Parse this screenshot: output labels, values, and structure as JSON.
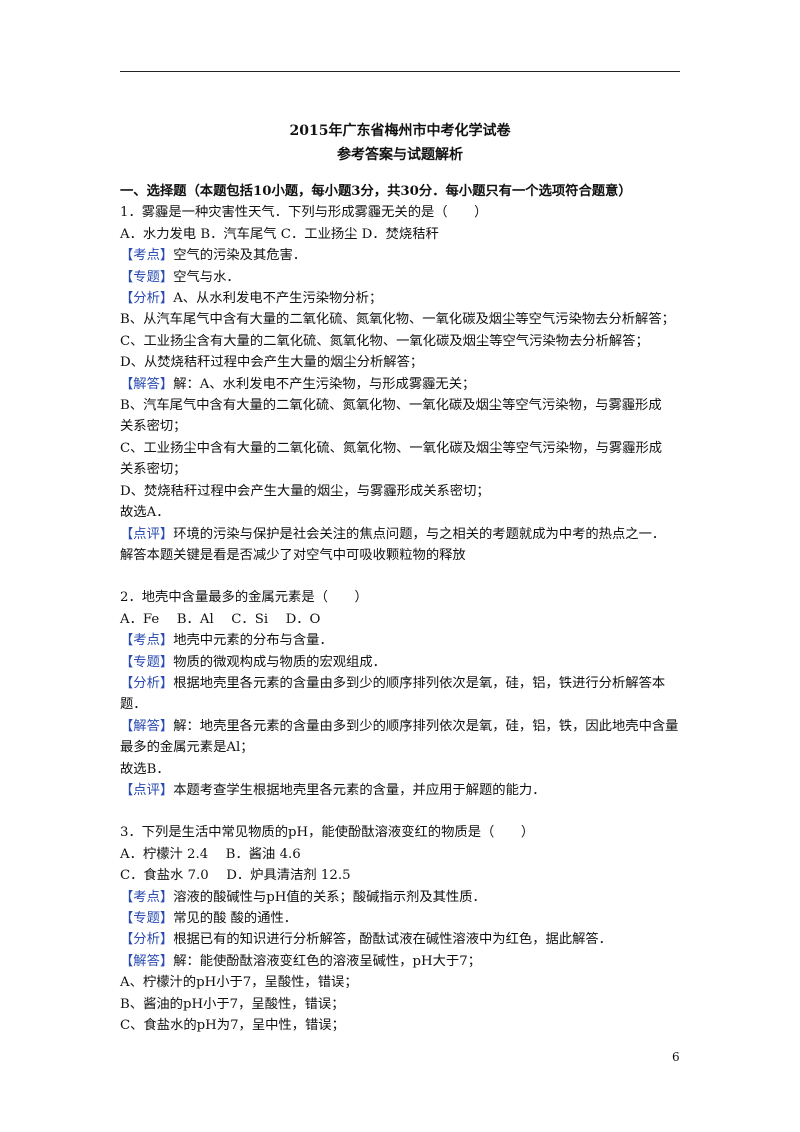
{
  "header": {
    "title": "2015年广东省梅州市中考化学试卷",
    "subtitle": "参考答案与试题解析"
  },
  "section": "一、选择题（本题包括10小题，每小题3分，共30分．每小题只有一个选项符合题意）",
  "questions": [
    {
      "lines": [
        "1．雾霾是一种灾害性天气．下列与形成雾霾无关的是（　　）",
        "A．水力发电 B．汽车尾气 C．工业扬尘 D．焚烧秸秆",
        {
          "tag": "【考点】",
          "text": "空气的污染及其危害．"
        },
        {
          "tag": "【专题】",
          "text": "空气与水．"
        },
        {
          "tag": "【分析】",
          "text": "A、从水利发电不产生污染物分析；"
        },
        "B、从汽车尾气中含有大量的二氧化硫、氮氧化物、一氧化碳及烟尘等空气污染物去分析解答；",
        "C、工业扬尘含有大量的二氧化硫、氮氧化物、一氧化碳及烟尘等空气污染物去分析解答；",
        "D、从焚烧秸秆过程中会产生大量的烟尘分析解答；",
        {
          "tag": "【解答】",
          "text": "解：A、水利发电不产生污染物，与形成雾霾无关；"
        },
        "B、汽车尾气中含有大量的二氧化硫、氮氧化物、一氧化碳及烟尘等空气污染物，与雾霾形成",
        "关系密切；",
        "C、工业扬尘中含有大量的二氧化硫、氮氧化物、一氧化碳及烟尘等空气污染物，与雾霾形成",
        "关系密切；",
        "D、焚烧秸秆过程中会产生大量的烟尘，与雾霾形成关系密切；",
        "故选A．",
        {
          "tag": "【点评】",
          "text": "环境的污染与保护是社会关注的焦点问题，与之相关的考题就成为中考的热点之一．"
        },
        "解答本题关键是看是否减少了对空气中可吸收颗粒物的释放"
      ]
    },
    {
      "lines": [
        "2．地壳中含量最多的金属元素是（　　）",
        "A．Fe　 B．Al　 C．Si　 D．O",
        {
          "tag": "【考点】",
          "text": "地壳中元素的分布与含量．"
        },
        {
          "tag": "【专题】",
          "text": "物质的微观构成与物质的宏观组成．"
        },
        {
          "tag": "【分析】",
          "text": "根据地壳里各元素的含量由多到少的顺序排列依次是氧，硅，铝，铁进行分析解答本"
        },
        "题．",
        {
          "tag": "【解答】",
          "text": "解：地壳里各元素的含量由多到少的顺序排列依次是氧，硅，铝，铁，因此地壳中含量"
        },
        "最多的金属元素是Al；",
        "故选B．",
        {
          "tag": "【点评】",
          "text": "本题考查学生根据地壳里各元素的含量，并应用于解题的能力．"
        }
      ]
    },
    {
      "lines": [
        "3．下列是生活中常见物质的pH，能使酚酞溶液变红的物质是（　　）",
        "A．柠檬汁 2.4　 B．酱油 4.6",
        "C．食盐水 7.0　 D．炉具清洁剂 12.5",
        {
          "tag": "【考点】",
          "text": "溶液的酸碱性与pH值的关系；酸碱指示剂及其性质．"
        },
        {
          "tag": "【专题】",
          "text": "常见的酸 酸的通性．"
        },
        {
          "tag": "【分析】",
          "text": "根据已有的知识进行分析解答，酚酞试液在碱性溶液中为红色，据此解答．"
        },
        {
          "tag": "【解答】",
          "text": "解：能使酚酞溶液变红色的溶液呈碱性，pH大于7；"
        },
        "A、柠檬汁的pH小于7，呈酸性，错误；",
        "B、酱油的pH小于7，呈酸性，错误；",
        "C、食盐水的pH为7，呈中性，错误；"
      ]
    }
  ],
  "page_number": "6"
}
